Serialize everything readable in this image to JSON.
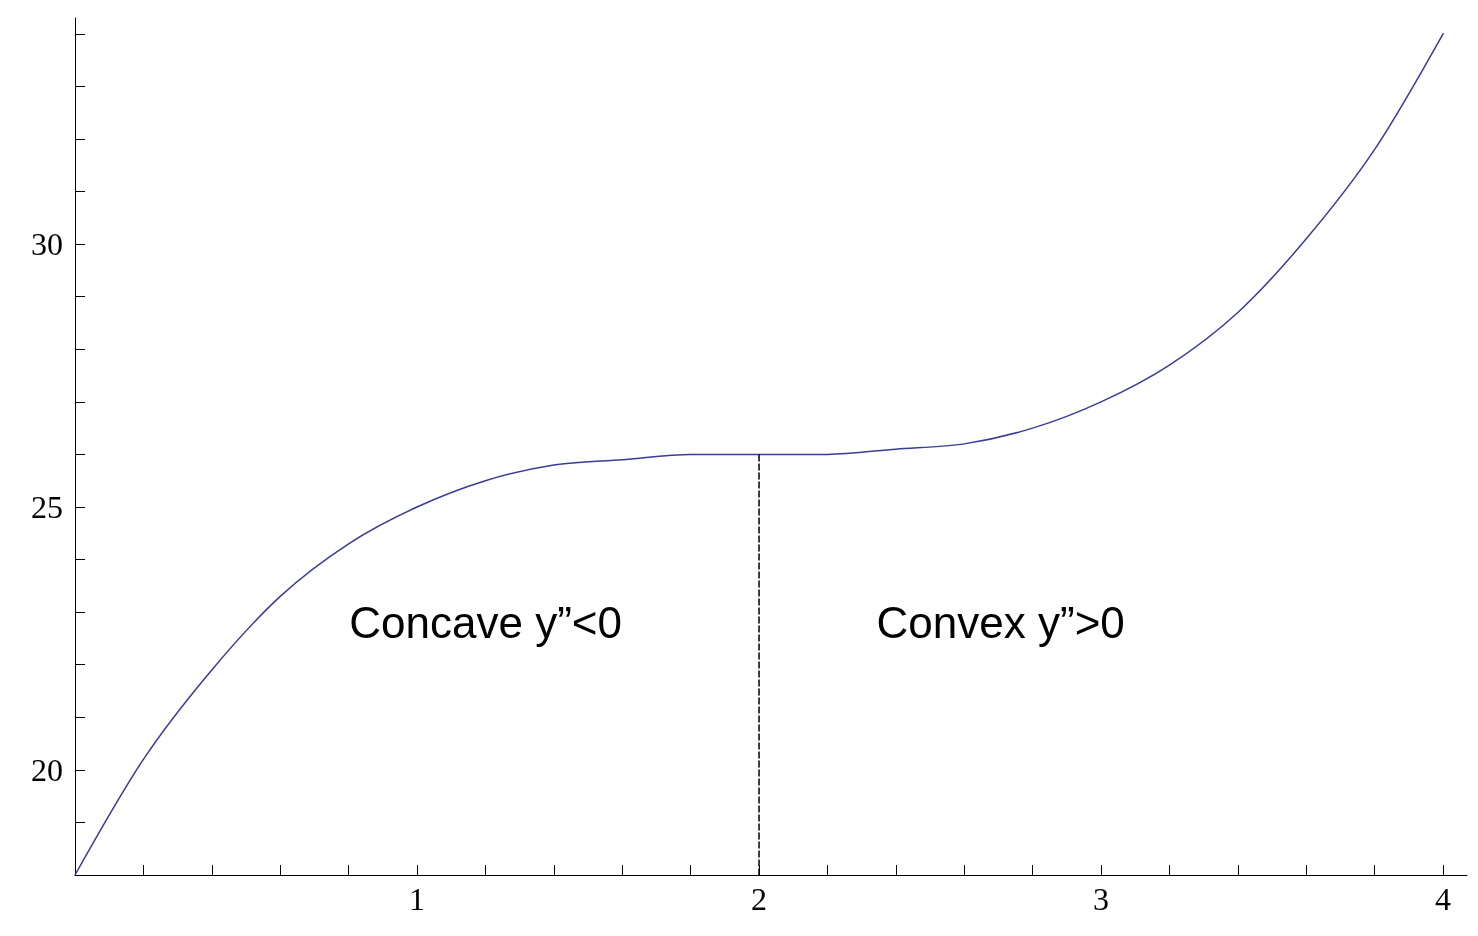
{
  "chart_data": {
    "type": "line",
    "series": [
      {
        "color": "#3b3b98",
        "x": [
          0,
          0.2,
          0.4,
          0.6,
          0.8,
          1,
          1.2,
          1.4,
          1.6,
          1.8,
          2,
          2.2,
          2.4,
          2.6,
          2.8,
          3,
          3.2,
          3.4,
          3.6,
          3.8,
          4
        ],
        "values": [
          18,
          20.2,
          21.9,
          23.3,
          24.3,
          25,
          25.5,
          25.8,
          25.9,
          26,
          26,
          26,
          26.1,
          26.2,
          26.5,
          27,
          27.7,
          28.7,
          30.1,
          31.8,
          34
        ]
      },
      {
        "color": "#000000",
        "line_style": "dashed",
        "x": [
          2,
          2
        ],
        "values": [
          18,
          26
        ]
      }
    ],
    "xlim": [
      0,
      4.07
    ],
    "ylim": [
      18,
      34.3
    ],
    "xticks": [
      {
        "value": 0,
        "label": null
      },
      {
        "value": 0.2,
        "label": null
      },
      {
        "value": 0.4,
        "label": null
      },
      {
        "value": 0.6,
        "label": null
      },
      {
        "value": 0.8,
        "label": null
      },
      1,
      {
        "value": 1.2,
        "label": null
      },
      {
        "value": 1.4,
        "label": null
      },
      {
        "value": 1.6,
        "label": null
      },
      {
        "value": 1.8,
        "label": null
      },
      2,
      {
        "value": 2.2,
        "label": null
      },
      {
        "value": 2.4,
        "label": null
      },
      {
        "value": 2.6,
        "label": null
      },
      {
        "value": 2.8,
        "label": null
      },
      3,
      {
        "value": 3.2,
        "label": null
      },
      {
        "value": 3.4,
        "label": null
      },
      {
        "value": 3.6,
        "label": null
      },
      {
        "value": 3.8,
        "label": null
      },
      4
    ],
    "yticks": [
      {
        "value": 19,
        "label": null
      },
      20,
      {
        "value": 21,
        "label": null
      },
      {
        "value": 22,
        "label": null
      },
      {
        "value": 23,
        "label": null
      },
      {
        "value": 24,
        "label": null
      },
      25,
      {
        "value": 26,
        "label": null
      },
      {
        "value": 27,
        "label": null
      },
      {
        "value": 28,
        "label": null
      },
      {
        "value": 29,
        "label": null
      },
      30,
      {
        "value": 31,
        "label": null
      },
      {
        "value": 32,
        "label": null
      },
      {
        "value": 33,
        "label": null
      },
      {
        "value": 34,
        "label": null
      }
    ],
    "annotations": [
      "Concave y”<0",
      "Convex y”>0"
    ],
    "grid": false,
    "marker": "none"
  }
}
